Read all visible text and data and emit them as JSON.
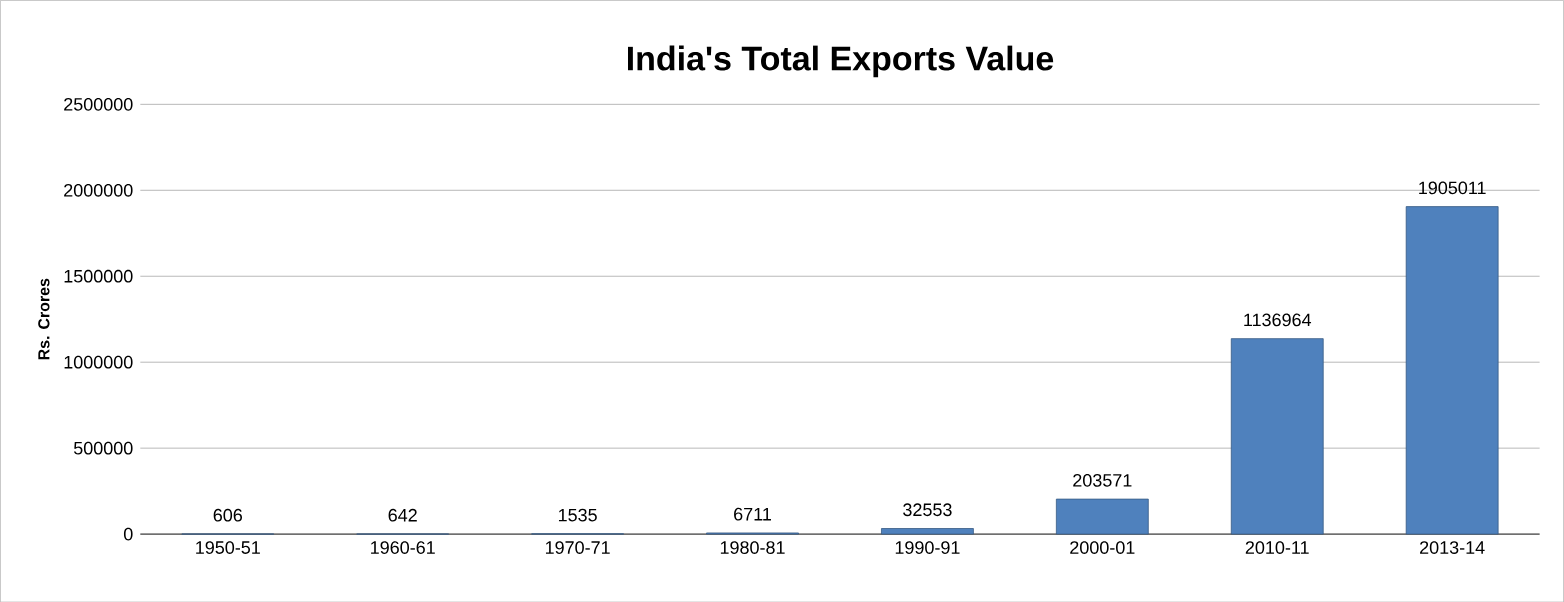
{
  "chart_data": {
    "type": "bar",
    "title": "India's Total Exports Value",
    "ylabel": "Rs. Crores",
    "categories": [
      "1950-51",
      "1960-61",
      "1970-71",
      "1980-81",
      "1990-91",
      "2000-01",
      "2010-11",
      "2013-14"
    ],
    "values": [
      606,
      642,
      1535,
      6711,
      32553,
      203571,
      1136964,
      1905011
    ],
    "color": "#4f81bd",
    "ylim": [
      0,
      2500000
    ],
    "yticks": [
      0,
      500000,
      1000000,
      1500000,
      2000000,
      2500000
    ],
    "grid": "y",
    "data_labels": true
  }
}
